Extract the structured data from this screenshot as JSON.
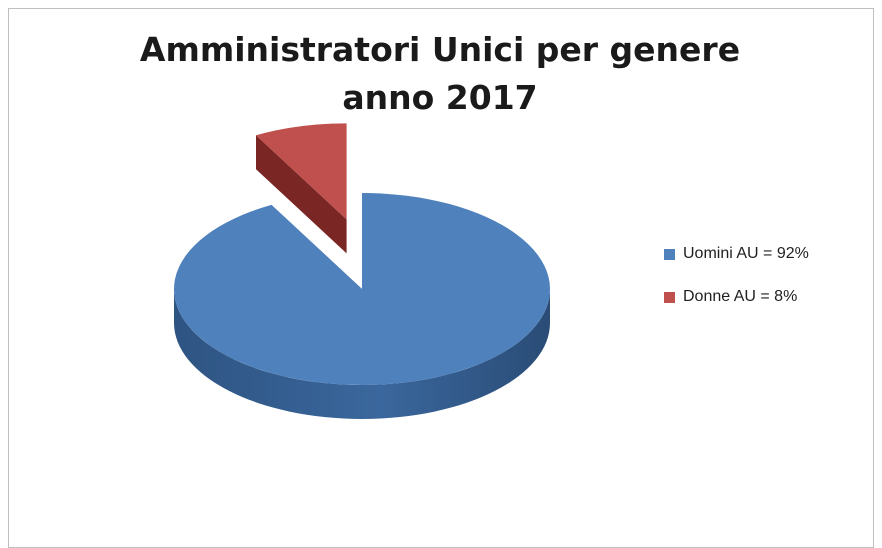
{
  "chart_data": {
    "type": "pie",
    "title": [
      "Amministratori Unici per genere",
      "anno 2017"
    ],
    "categories": [
      "Uomini AU = 92%",
      "Donne AU = 8%"
    ],
    "values": [
      92,
      8
    ],
    "colors": [
      "#4f81bd",
      "#c0504d"
    ],
    "side_colors": [
      "#2e5482",
      "#7a2624"
    ],
    "exploded": [
      false,
      true
    ],
    "style": "3d",
    "legend_position": "right"
  }
}
